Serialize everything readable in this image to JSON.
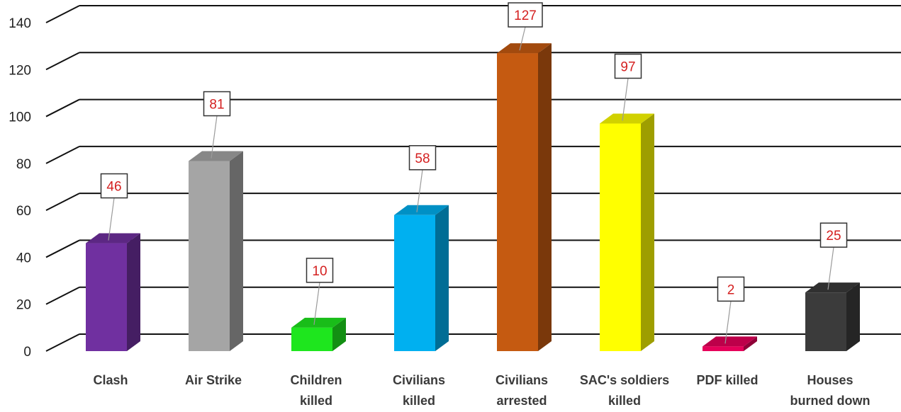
{
  "chart_data": {
    "type": "bar",
    "title": "",
    "xlabel": "",
    "ylabel": "",
    "categories": [
      [
        "Clash"
      ],
      [
        "Air Strike"
      ],
      [
        "Children",
        "killed"
      ],
      [
        "Civilians",
        "killed"
      ],
      [
        "Civilians",
        "arrested"
      ],
      [
        "SAC's soldiers",
        "killed"
      ],
      [
        "PDF killed"
      ],
      [
        "Houses",
        "burned down"
      ]
    ],
    "values": [
      46,
      81,
      10,
      58,
      127,
      97,
      2,
      25
    ],
    "data_labels": [
      "46",
      "81",
      "10",
      "58",
      "127",
      "97",
      "2",
      "25"
    ],
    "colors": [
      "#7030a0",
      "#a5a5a5",
      "#1ee61e",
      "#00b0f0",
      "#c55a11",
      "#ffff00",
      "#e6005a",
      "#3b3b3b"
    ],
    "ylim": [
      0,
      140
    ],
    "yticks": [
      0,
      20,
      40,
      60,
      80,
      100,
      120,
      140
    ],
    "grid": true,
    "legend": "none",
    "style": "3d-column"
  }
}
